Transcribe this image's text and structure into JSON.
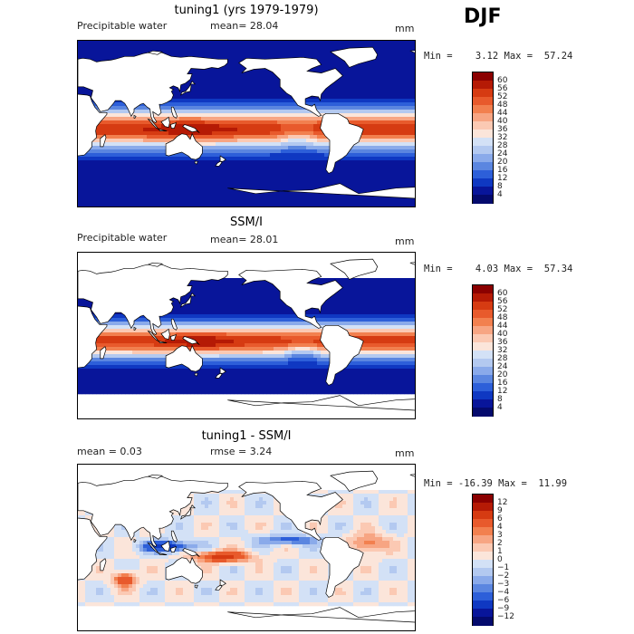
{
  "season": "DJF",
  "panels": [
    {
      "title": "tuning1 (yrs 1979-1979)",
      "left_label": "Precipitable water",
      "center_label": "mean=  28.04",
      "units": "mm",
      "min_max": "Min =    3.12 Max =  57.24",
      "colorbar": {
        "ticks": [
          "60",
          "56",
          "52",
          "48",
          "44",
          "40",
          "36",
          "32",
          "28",
          "24",
          "20",
          "16",
          "12",
          "8",
          "4"
        ],
        "colors": [
          "#8b0000",
          "#b51a05",
          "#d63b12",
          "#e85a2c",
          "#f2804f",
          "#f7a583",
          "#fbc9b3",
          "#fbe5da",
          "#d3e1f6",
          "#b3c9f0",
          "#8aaaea",
          "#5b86e0",
          "#2d5fd9",
          "#0f38c2",
          "#08159a",
          "#040a6d"
        ]
      },
      "field": "pw_model"
    },
    {
      "title": "SSM/I",
      "left_label": "Precipitable water",
      "center_label": "mean=  28.01",
      "units": "mm",
      "min_max": "Min =    4.03 Max =  57.34",
      "colorbar": {
        "ticks": [
          "60",
          "56",
          "52",
          "48",
          "44",
          "40",
          "36",
          "32",
          "28",
          "24",
          "20",
          "16",
          "12",
          "8",
          "4"
        ],
        "colors": [
          "#8b0000",
          "#b51a05",
          "#d63b12",
          "#e85a2c",
          "#f2804f",
          "#f7a583",
          "#fbc9b3",
          "#fbe5da",
          "#d3e1f6",
          "#b3c9f0",
          "#8aaaea",
          "#5b86e0",
          "#2d5fd9",
          "#0f38c2",
          "#08159a",
          "#040a6d"
        ]
      },
      "field": "pw_obs"
    },
    {
      "title": "tuning1 - SSM/I",
      "left_label": "mean =    0.03",
      "center_label": "rmse =    3.24",
      "units": "mm",
      "min_max": "Min = -16.39 Max =  11.99",
      "colorbar": {
        "ticks": [
          "12",
          "9",
          "6",
          "4",
          "3",
          "2",
          "1",
          "0",
          "−1",
          "−2",
          "−3",
          "−4",
          "−6",
          "−9",
          "−12"
        ],
        "colors": [
          "#8b0000",
          "#b51a05",
          "#d63b12",
          "#e85a2c",
          "#f2804f",
          "#f7a583",
          "#fbc9b3",
          "#fbe5da",
          "#d3e1f6",
          "#b3c9f0",
          "#8aaaea",
          "#5b86e0",
          "#2d5fd9",
          "#0f38c2",
          "#08159a",
          "#040a6d"
        ]
      },
      "field": "pw_diff"
    }
  ]
}
